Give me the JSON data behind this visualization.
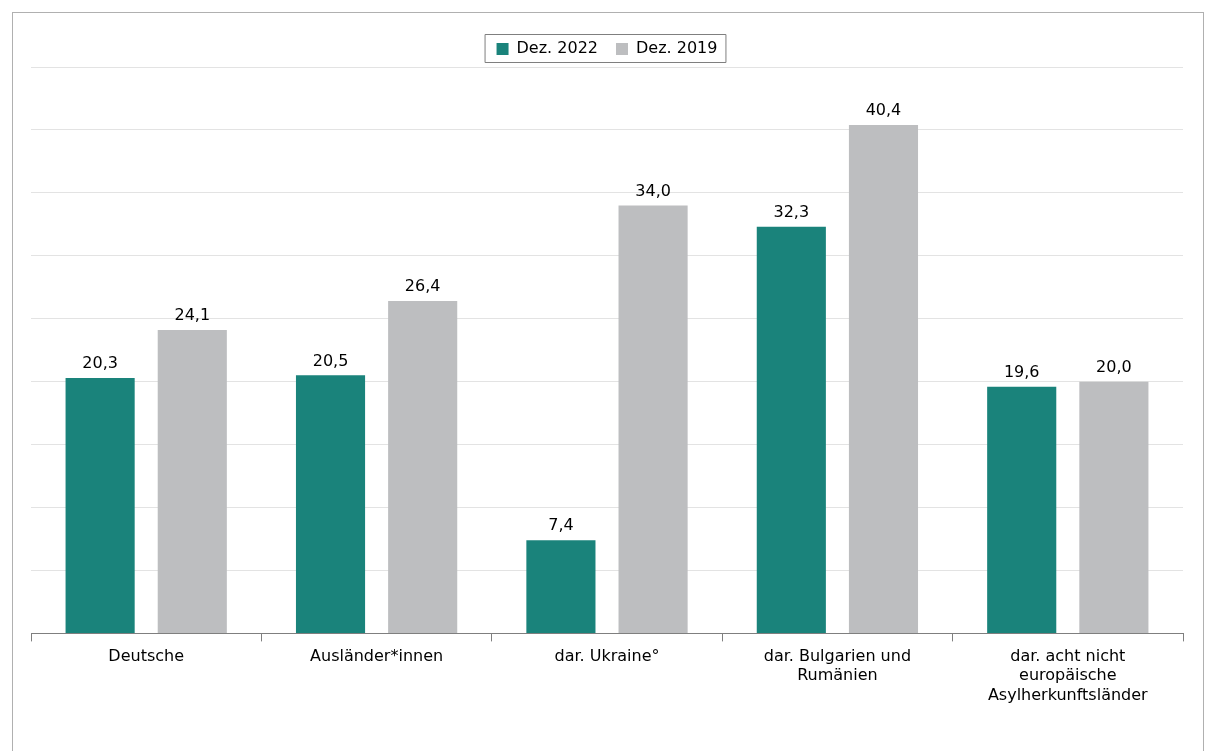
{
  "chart_data": {
    "type": "bar",
    "categories": [
      "Deutsche",
      "Ausländer*innen",
      "dar. Ukraine°",
      "dar. Bulgarien und Rumänien",
      "dar. acht nicht europäische Asylherkunftsländer"
    ],
    "series": [
      {
        "name": "Dez. 2022",
        "color": "#1a837b",
        "values": [
          20.3,
          20.5,
          7.4,
          32.3,
          19.6
        ],
        "value_labels": [
          "20,3",
          "20,5",
          "7,4",
          "32,3",
          "19,6"
        ]
      },
      {
        "name": "Dez. 2019",
        "color": "#bdbec0",
        "values": [
          24.1,
          26.4,
          34.0,
          40.4,
          20.0
        ],
        "value_labels": [
          "24,1",
          "26,4",
          "34,0",
          "40,4",
          "20,0"
        ]
      }
    ],
    "tick_labels": "x",
    "grid": "y",
    "legend": "top"
  }
}
